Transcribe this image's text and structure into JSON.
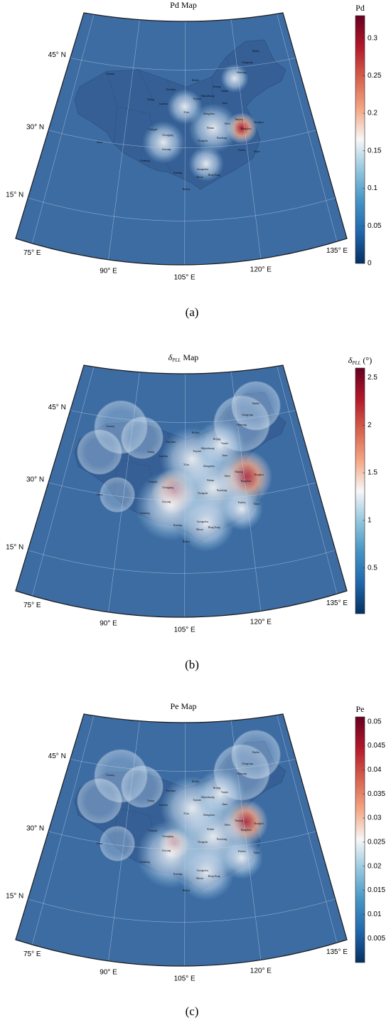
{
  "panels": [
    {
      "title": "Pd Map",
      "colorbar": {
        "label": "Pd",
        "lim": [
          0,
          0.33
        ],
        "ticks": [
          0,
          0.05,
          0.1,
          0.15,
          0.2,
          0.25,
          0.3
        ]
      },
      "caption": "(a)"
    },
    {
      "title": {
        "symbol": "δ",
        "subscript": "PLL",
        "rest": " Map"
      },
      "colorbar": {
        "label": {
          "symbol": "δ",
          "subscript": "PLL",
          "rest": " (°)"
        },
        "lim": [
          0.02,
          2.6
        ],
        "ticks": [
          0.5,
          1,
          1.5,
          2,
          2.5
        ]
      },
      "caption": "(b)"
    },
    {
      "title": "Pe Map",
      "colorbar": {
        "label": "Pe",
        "lim": [
          0,
          0.051
        ],
        "ticks": [
          0.005,
          0.01,
          0.015,
          0.02,
          0.025,
          0.03,
          0.035,
          0.04,
          0.045,
          0.05
        ]
      },
      "caption": "(c)"
    }
  ],
  "lat_labels": [
    "45° N",
    "30° N",
    "15° N"
  ],
  "lon_labels": [
    "75° E",
    "90° E",
    "105° E",
    "120° E",
    "135° E"
  ],
  "cities": [
    "Harbin",
    "Changchun",
    "Shenyang",
    "Beijing",
    "Tianjin",
    "Shijiazhuang",
    "Taiyuan",
    "Jinan",
    "Zhengzhou",
    "Xi'an",
    "Lanzhou",
    "Xining",
    "Yinchuan",
    "Hohhot",
    "Chengdu",
    "Chongqing",
    "Guiyang",
    "Kunming",
    "Nanning",
    "Guangzhou",
    "Hong Kong",
    "Macau",
    "Haikou",
    "Wuhan",
    "Changsha",
    "Nanchang",
    "Fuzhou",
    "Taipei",
    "Hangzhou",
    "Shanghai",
    "Nanjing",
    "Hefei",
    "Urumqi",
    "Lhasa"
  ]
}
